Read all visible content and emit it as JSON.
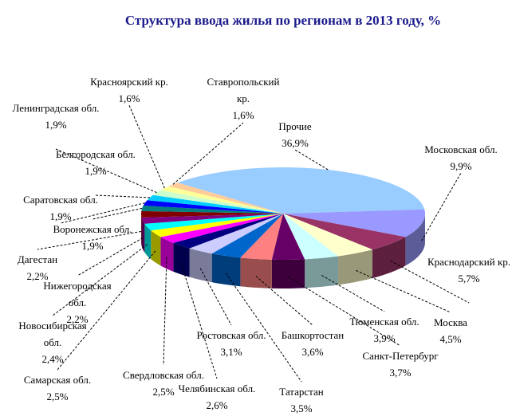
{
  "chart_data": {
    "type": "pie3d",
    "title": "Структура ввода жилья по регионам в 2013 году, %",
    "categories": [
      "Прочие",
      "Московская обл.",
      "Краснодарский кр.",
      "Москва",
      "Тюменская обл.",
      "Санкт-Петербург",
      "Башкортостан",
      "Татарстан",
      "Ростовская обл.",
      "Челябинская обл.",
      "Свердловская обл.",
      "Самарская обл.",
      "Новосибирская обл.",
      "Нижегородская обл.",
      "Дагестан",
      "Воронежская обл.",
      "Саратовская обл.",
      "Белгородская обл.",
      "Ленинградская обл.",
      "Красноярский кр.",
      "Ставропольский кр."
    ],
    "values": [
      36.9,
      9.9,
      5.7,
      4.5,
      3.9,
      3.7,
      3.6,
      3.5,
      3.1,
      2.6,
      2.5,
      2.5,
      2.4,
      2.2,
      2.2,
      1.9,
      1.9,
      1.9,
      1.9,
      1.6,
      1.6
    ],
    "value_labels": [
      "36,9%",
      "9,9%",
      "5,7%",
      "4,5%",
      "3,9%",
      "3,7%",
      "3,6%",
      "3,5%",
      "3,1%",
      "2,6%",
      "2,5%",
      "2,5%",
      "2,4%",
      "2,2%",
      "2,2%",
      "1,9%",
      "1,9%",
      "1,9%",
      "1,9%",
      "1,6%",
      "1,6%"
    ],
    "colors": [
      "#99ccff",
      "#9999ff",
      "#993366",
      "#ffffcc",
      "#ccffff",
      "#660066",
      "#ff8080",
      "#0066cc",
      "#ccccff",
      "#000080",
      "#ff00ff",
      "#ffff00",
      "#00ffff",
      "#800080",
      "#800000",
      "#008080",
      "#0000ff",
      "#00ccff",
      "#ccffcc",
      "#ffff99",
      "#ffcc99"
    ]
  }
}
